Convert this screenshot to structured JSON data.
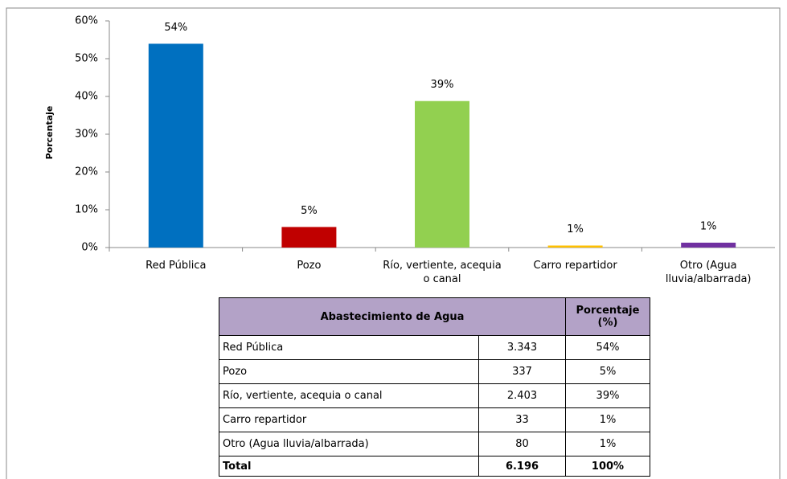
{
  "chart_data": {
    "type": "bar",
    "ylabel": "Porcentaje",
    "categories": [
      "Red Pública",
      "Pozo",
      "Río, vertiente, acequia o canal",
      "Carro repartidor",
      "Otro (Agua lluvia/albarrada)"
    ],
    "values": [
      53.95,
      5.44,
      38.78,
      0.53,
      1.29
    ],
    "value_labels": [
      "54%",
      "5%",
      "39%",
      "1%",
      "1%"
    ],
    "colors": [
      "#0070c0",
      "#c00000",
      "#92d050",
      "#ffc000",
      "#7030a0"
    ],
    "ylim": [
      0,
      60
    ],
    "yticks": [
      {
        "value": 0,
        "label": "0%"
      },
      {
        "value": 10,
        "label": "10%"
      },
      {
        "value": 20,
        "label": "20%"
      },
      {
        "value": 30,
        "label": "30%"
      },
      {
        "value": 40,
        "label": "40%"
      },
      {
        "value": 50,
        "label": "50%"
      },
      {
        "value": 60,
        "label": "60%"
      }
    ],
    "grid": false
  },
  "table": {
    "header": [
      "Abastecimiento de Agua",
      "Porcentaje (%)"
    ],
    "rows": [
      [
        "Red Pública",
        "3.343",
        "54%"
      ],
      [
        "Pozo",
        "337",
        "5%"
      ],
      [
        "Río, vertiente, acequia o canal",
        "2.403",
        "39%"
      ],
      [
        "Carro repartidor",
        "33",
        "1%"
      ],
      [
        "Otro (Agua lluvia/albarrada)",
        "80",
        "1%"
      ],
      [
        "Total",
        "6.196",
        "100%"
      ]
    ]
  }
}
